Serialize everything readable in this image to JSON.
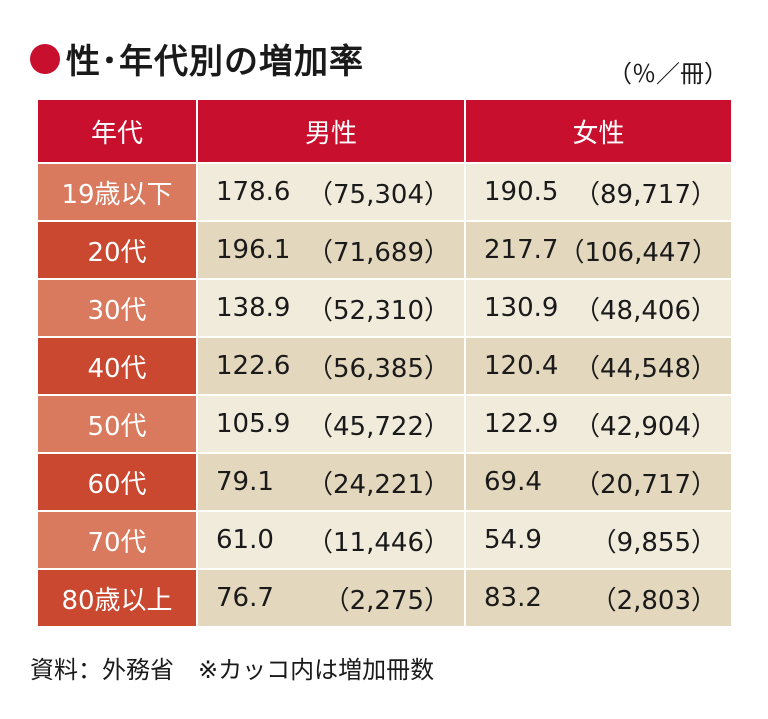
{
  "title": "性･年代別の増加率",
  "unit": "（％／冊）",
  "colors": {
    "accent": "#c8102e",
    "row_header_light": "#d97a5e",
    "row_header_dark": "#c9482f",
    "cell_light": "#f1ebdc",
    "cell_dark": "#e3d7bd"
  },
  "footer": "資料：外務省　※カッコ内は増加冊数",
  "chart_data": {
    "type": "table",
    "title": "性･年代別の増加率",
    "unit": "（％／冊）",
    "columns": [
      "年代",
      "男性",
      "女性"
    ],
    "rows": [
      {
        "age": "19歳以下",
        "male_rate": "178.6",
        "male_count": "（75,304）",
        "female_rate": "190.5",
        "female_count": "（89,717）"
      },
      {
        "age": "20代",
        "male_rate": "196.1",
        "male_count": "（71,689）",
        "female_rate": "217.7",
        "female_count": "（106,447）"
      },
      {
        "age": "30代",
        "male_rate": "138.9",
        "male_count": "（52,310）",
        "female_rate": "130.9",
        "female_count": "（48,406）"
      },
      {
        "age": "40代",
        "male_rate": "122.6",
        "male_count": "（56,385）",
        "female_rate": "120.4",
        "female_count": "（44,548）"
      },
      {
        "age": "50代",
        "male_rate": "105.9",
        "male_count": "（45,722）",
        "female_rate": "122.9",
        "female_count": "（42,904）"
      },
      {
        "age": "60代",
        "male_rate": "79.1",
        "male_count": "（24,221）",
        "female_rate": "69.4",
        "female_count": "（20,717）"
      },
      {
        "age": "70代",
        "male_rate": "61.0",
        "male_count": "（11,446）",
        "female_rate": "54.9",
        "female_count": "（9,855）"
      },
      {
        "age": "80歳以上",
        "male_rate": "76.7",
        "male_count": "（2,275）",
        "female_rate": "83.2",
        "female_count": "（2,803）"
      }
    ]
  }
}
